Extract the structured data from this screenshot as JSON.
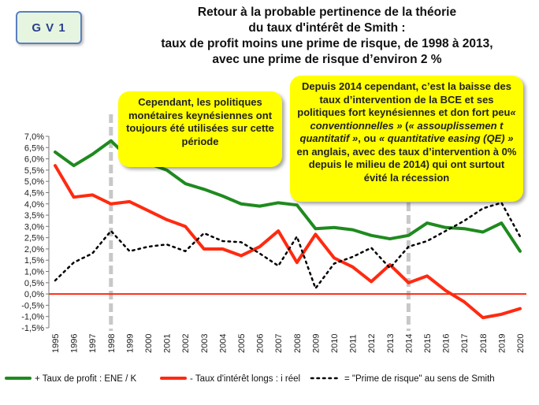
{
  "badge": "G V 1",
  "title_lines": [
    "Retour à la probable pertinence de la théorie",
    "du taux d'intérêt de Smith :",
    "taux de profit moins une prime de risque, de 1998 à 2013,",
    "avec une prime de risque d’environ 2 %"
  ],
  "callouts": {
    "left": "Cependant, les politiques monétaires keynésiennes ont toujours été utilisées sur cette période",
    "right_html": "Depuis 2014 cependant, c’est la baisse des taux d’intervention de la BCE et ses politiques fort keynésiennes et don fort peu<i>« conventionnelles »</i> (<i>« assouplissemen t quantitatif »</i>, ou <i>« quantitative easing (QE) »</i> en anglais, avec des taux d’intervention à 0% depuis le milieu de 2014) qui ont surtout évité la récession"
  },
  "colors": {
    "profit": "#1f8a1f",
    "interest": "#ff2a10",
    "premium": "#000000",
    "zero_line": "#ff2a10",
    "marker": "#c8c8c8"
  },
  "chart_data": {
    "type": "line",
    "x": [
      1995,
      1996,
      1997,
      1998,
      1999,
      2000,
      2001,
      2002,
      2003,
      2004,
      2005,
      2006,
      2007,
      2008,
      2009,
      2010,
      2011,
      2012,
      2013,
      2014,
      2015,
      2016,
      2017,
      2018,
      2019,
      2020
    ],
    "series": [
      {
        "name": "+ Taux de profit : ENE / K",
        "values": [
          6.3,
          5.7,
          6.2,
          6.8,
          6.0,
          5.8,
          5.5,
          4.9,
          4.65,
          4.35,
          4.0,
          3.9,
          4.05,
          3.95,
          2.9,
          2.95,
          2.85,
          2.6,
          2.45,
          2.6,
          3.15,
          2.95,
          2.9,
          2.75,
          3.15,
          1.9
        ]
      },
      {
        "name": "- Taux d'intérêt longs : i réel",
        "values": [
          5.7,
          4.3,
          4.4,
          4.0,
          4.1,
          3.7,
          3.3,
          3.0,
          2.0,
          2.0,
          1.7,
          2.1,
          2.8,
          1.4,
          2.65,
          1.6,
          1.2,
          0.55,
          1.3,
          0.5,
          0.8,
          0.15,
          -0.35,
          -1.05,
          -0.9,
          -0.65
        ]
      },
      {
        "name": "= \"Prime de risque\" au sens de Smith",
        "values": [
          0.6,
          1.4,
          1.8,
          2.8,
          1.9,
          2.1,
          2.2,
          1.9,
          2.7,
          2.35,
          2.3,
          1.8,
          1.25,
          2.55,
          0.25,
          1.35,
          1.65,
          2.05,
          1.15,
          2.1,
          2.35,
          2.8,
          3.25,
          3.8,
          4.05,
          2.55
        ]
      }
    ],
    "ylim": [
      -1.5,
      7.0
    ],
    "y_ticks": [
      "-1,5%",
      "-1,0%",
      "-0,5%",
      "0,0%",
      "0,5%",
      "1,0%",
      "1,5%",
      "2,0%",
      "2,5%",
      "3,0%",
      "3,5%",
      "4,0%",
      "4,5%",
      "5,0%",
      "5,5%",
      "6,0%",
      "6,5%",
      "7,0%"
    ],
    "x_tick_labels": [
      "1995",
      "1996",
      "1997",
      "1998",
      "1999",
      "2000",
      "2001",
      "2002",
      "2003",
      "2004",
      "2005",
      "2006",
      "2007",
      "2008",
      "2009",
      "2010",
      "2011",
      "2012",
      "2013",
      "2014",
      "2015",
      "2016",
      "2017",
      "2018",
      "2019",
      "2020"
    ],
    "vertical_markers": [
      1998,
      2014
    ],
    "zero_line": 0,
    "grid": false,
    "legend_placement": "bottom"
  }
}
